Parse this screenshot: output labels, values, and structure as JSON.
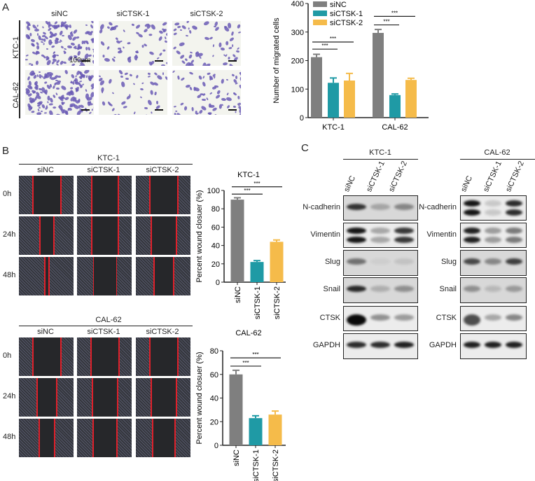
{
  "panel_labels": {
    "a": "A",
    "b": "B",
    "c": "C"
  },
  "panel_a": {
    "columns": [
      "siNC",
      "siCTSK-1",
      "siCTSK-2"
    ],
    "rows": [
      "KTC-1",
      "CAL-62"
    ],
    "scale_bar": "100um"
  },
  "panel_b": {
    "blocks": [
      {
        "title": "KTC-1",
        "columns": [
          "siNC",
          "siCTSK-1",
          "siCTSK-2"
        ],
        "rows": [
          "0h",
          "24h",
          "48h"
        ]
      },
      {
        "title": "CAL-62",
        "columns": [
          "siNC",
          "siCTSK-1",
          "siCTSK-2"
        ],
        "rows": [
          "0h",
          "24h",
          "48h"
        ]
      }
    ]
  },
  "panel_c": {
    "blots": [
      {
        "title": "KTC-1",
        "lanes": [
          "siNC",
          "siCTSK-1",
          "siCTSK-2"
        ],
        "proteins": [
          "N-cadherin",
          "Vimentin",
          "Slug",
          "Snail",
          "CTSK",
          "GAPDH"
        ],
        "band_intensity": [
          [
            0.8,
            0.25,
            0.4
          ],
          [
            0.95,
            0.3,
            0.8
          ],
          [
            0.5,
            0.05,
            0.1
          ],
          [
            0.85,
            0.2,
            0.35
          ],
          [
            1.0,
            0.4,
            0.35
          ],
          [
            0.85,
            0.85,
            0.9
          ]
        ]
      },
      {
        "title": "CAL-62",
        "lanes": [
          "siNC",
          "siCTSK-1",
          "siCTSK-2"
        ],
        "proteins": [
          "N-cadherin",
          "Vimentin",
          "Slug",
          "Snail",
          "CTSK",
          "GAPDH"
        ],
        "band_intensity": [
          [
            0.95,
            0.15,
            0.85
          ],
          [
            0.9,
            0.35,
            0.5
          ],
          [
            0.7,
            0.4,
            0.75
          ],
          [
            0.35,
            0.15,
            0.3
          ],
          [
            0.7,
            0.3,
            0.45
          ],
          [
            0.9,
            0.9,
            0.9
          ]
        ]
      }
    ]
  },
  "colors": {
    "siNC": "#7f7f7f",
    "siCTSK-1": "#1f9aa5",
    "siCTSK-2": "#f5bb4a"
  },
  "chart_data": [
    {
      "type": "bar",
      "title": "",
      "ylabel": "Number of migrated cells",
      "xlabel": "",
      "categories": [
        "KTC-1",
        "CAL-62"
      ],
      "ylim": [
        0,
        400
      ],
      "yticks": [
        0,
        100,
        200,
        300,
        400
      ],
      "legend": "top-right",
      "series": [
        {
          "name": "siNC",
          "values": [
            212,
            297
          ],
          "errors": [
            10,
            12
          ]
        },
        {
          "name": "siCTSK-1",
          "values": [
            122,
            79
          ],
          "errors": [
            17,
            4
          ]
        },
        {
          "name": "siCTSK-2",
          "values": [
            130,
            132
          ],
          "errors": [
            25,
            6
          ]
        }
      ],
      "significance": [
        {
          "category": "KTC-1",
          "from": "siNC",
          "to": "siCTSK-1",
          "label": "***",
          "level": 240
        },
        {
          "category": "KTC-1",
          "from": "siNC",
          "to": "siCTSK-2",
          "label": "***",
          "level": 265
        },
        {
          "category": "CAL-62",
          "from": "siNC",
          "to": "siCTSK-1",
          "label": "***",
          "level": 325
        },
        {
          "category": "CAL-62",
          "from": "siNC",
          "to": "siCTSK-2",
          "label": "***",
          "level": 355
        }
      ]
    },
    {
      "type": "bar",
      "title": "KTC-1",
      "ylabel": "Percent wound closuer (%)",
      "categories": [
        "siNC",
        "siCTSK-1",
        "siCTSK-2"
      ],
      "values": [
        90,
        22,
        44
      ],
      "errors": [
        2,
        1.5,
        2
      ],
      "ylim": [
        0,
        100
      ],
      "yticks": [
        0,
        20,
        40,
        60,
        80,
        100
      ],
      "significance": [
        {
          "from": "siNC",
          "to": "siCTSK-1",
          "label": "***",
          "level": 96
        },
        {
          "from": "siNC",
          "to": "siCTSK-2",
          "label": "***",
          "level": 104
        }
      ]
    },
    {
      "type": "bar",
      "title": "CAL-62",
      "ylabel": "Percent wound closuer (%)",
      "categories": [
        "siNC",
        "siCTSK-1",
        "siCTSK-2"
      ],
      "values": [
        60,
        23,
        26
      ],
      "errors": [
        3.5,
        2,
        3
      ],
      "ylim": [
        0,
        80
      ],
      "yticks": [
        0,
        20,
        40,
        60,
        80
      ],
      "significance": [
        {
          "from": "siNC",
          "to": "siCTSK-1",
          "label": "***",
          "level": 67
        },
        {
          "from": "siNC",
          "to": "siCTSK-2",
          "label": "***",
          "level": 74
        }
      ]
    }
  ]
}
